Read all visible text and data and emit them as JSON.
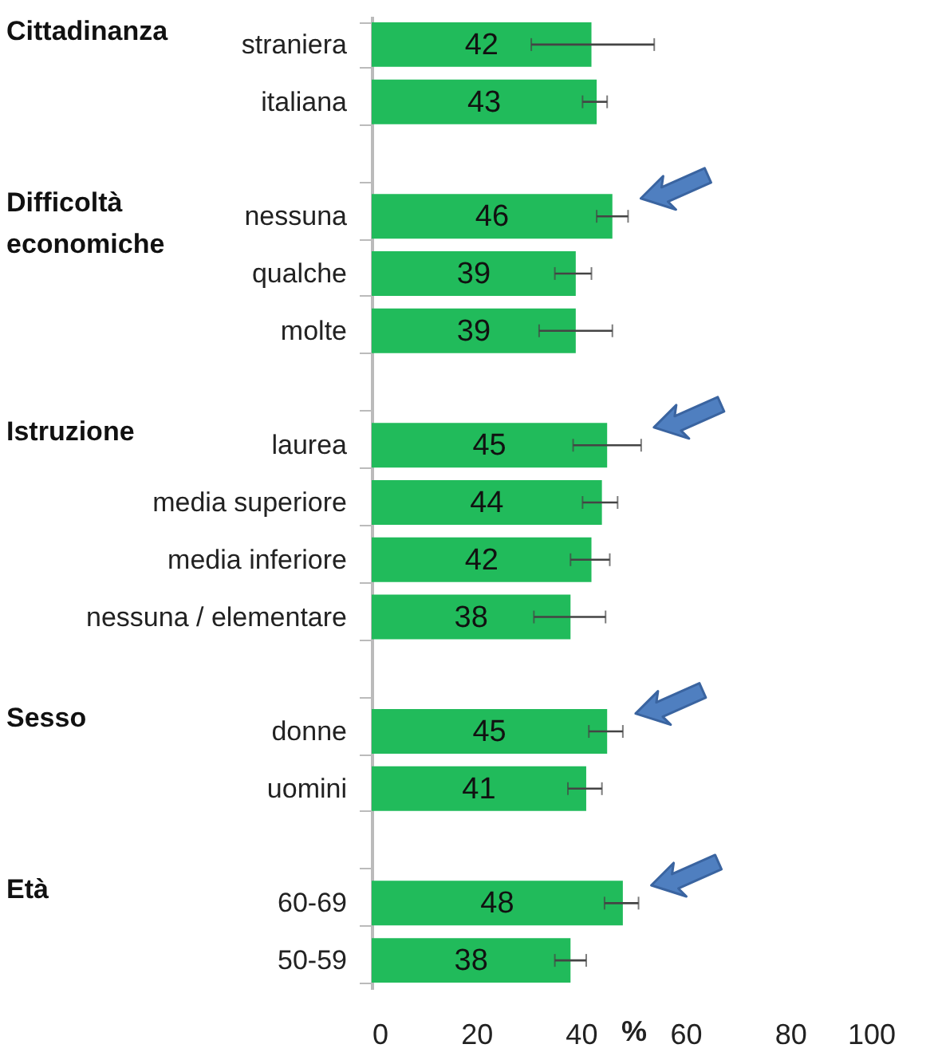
{
  "chart_data": {
    "type": "bar",
    "orientation": "horizontal",
    "categories": [
      "straniera",
      "italiana",
      null,
      "nessuna",
      "qualche",
      "molte",
      null,
      "laurea",
      "media superiore",
      "media inferiore",
      "nessuna / elementare",
      null,
      "donne",
      "uomini",
      null,
      "60-69",
      "50-59"
    ],
    "values": [
      42,
      43,
      null,
      46,
      39,
      39,
      null,
      45,
      44,
      42,
      38,
      null,
      45,
      41,
      null,
      48,
      38
    ],
    "errors": [
      [
        30.5,
        54
      ],
      [
        40.3,
        45
      ],
      null,
      [
        43,
        49
      ],
      [
        35,
        42
      ],
      [
        32,
        46
      ],
      null,
      [
        38.5,
        51.5
      ],
      [
        40.3,
        47
      ],
      [
        38,
        45.5
      ],
      [
        31,
        44.7
      ],
      null,
      [
        41.5,
        48
      ],
      [
        37.5,
        44
      ],
      null,
      [
        44.5,
        51
      ],
      [
        35,
        41
      ]
    ],
    "color": "#21bb5b",
    "data_labels": true,
    "xlim": [
      0,
      100
    ],
    "xticks": [
      0,
      20,
      40,
      60,
      80,
      100
    ],
    "xlabel": "%",
    "annotations": [
      "Cittadinanza",
      "Difficoltà economiche",
      "Istruzione",
      "Sesso",
      "Età"
    ]
  }
}
